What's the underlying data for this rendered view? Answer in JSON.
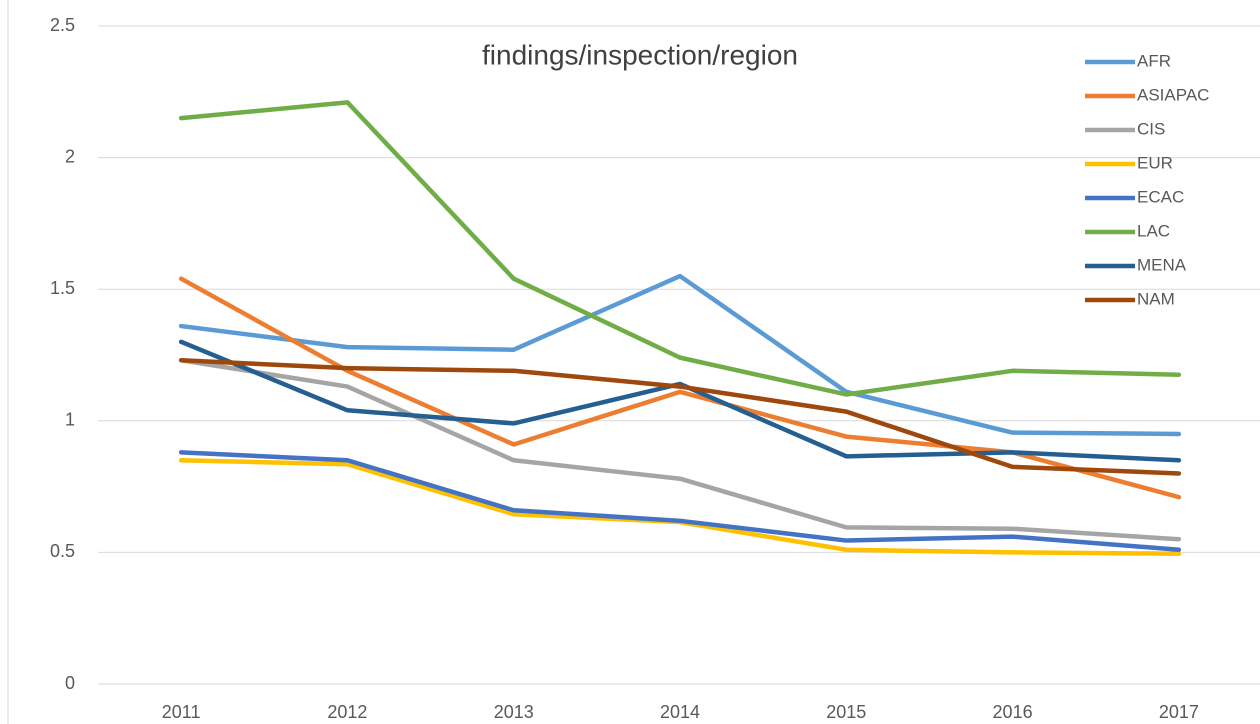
{
  "chart_data": {
    "type": "line",
    "title": "findings/inspection/region",
    "categories": [
      "2011",
      "2012",
      "2013",
      "2014",
      "2015",
      "2016",
      "2017"
    ],
    "series": [
      {
        "name": "AFR",
        "color": "#5b9bd5",
        "values": [
          1.36,
          1.28,
          1.27,
          1.55,
          1.11,
          0.955,
          0.95
        ]
      },
      {
        "name": "ASIAPAC",
        "color": "#ed7d31",
        "values": [
          1.54,
          1.19,
          0.91,
          1.11,
          0.94,
          0.88,
          0.71
        ]
      },
      {
        "name": "CIS",
        "color": "#a5a5a5",
        "values": [
          1.23,
          1.13,
          0.85,
          0.78,
          0.595,
          0.59,
          0.55
        ]
      },
      {
        "name": "EUR",
        "color": "#ffc000",
        "values": [
          0.85,
          0.835,
          0.645,
          0.615,
          0.51,
          0.5,
          0.495
        ]
      },
      {
        "name": "ECAC",
        "color": "#4472c4",
        "values": [
          0.88,
          0.85,
          0.66,
          0.62,
          0.545,
          0.56,
          0.51
        ]
      },
      {
        "name": "LAC",
        "color": "#70ad47",
        "values": [
          2.15,
          2.21,
          1.54,
          1.24,
          1.1,
          1.19,
          1.175
        ]
      },
      {
        "name": "MENA",
        "color": "#255e91",
        "values": [
          1.3,
          1.04,
          0.99,
          1.14,
          0.865,
          0.88,
          0.85
        ]
      },
      {
        "name": "NAM",
        "color": "#9e480e",
        "values": [
          1.23,
          1.2,
          1.19,
          1.13,
          1.035,
          0.825,
          0.8
        ]
      }
    ],
    "ylim": [
      0,
      2.5
    ],
    "yticks": [
      0,
      0.5,
      1,
      1.5,
      2,
      2.5
    ],
    "grid": true,
    "legend": "top-right"
  }
}
